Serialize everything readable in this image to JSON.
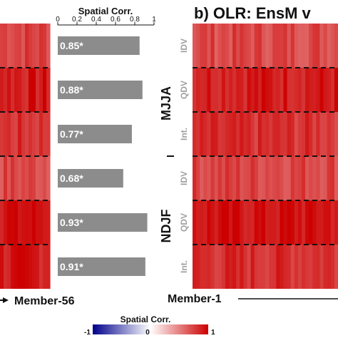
{
  "chart_data": [
    {
      "type": "heatmap",
      "title": "",
      "x_end_label": "Member-56",
      "rows": [
        "IDV",
        "QDV",
        "Int.",
        "IDV",
        "QDV",
        "Int."
      ],
      "row_values": [
        0.75,
        0.9,
        0.8,
        0.72,
        0.95,
        0.9
      ]
    },
    {
      "type": "bar",
      "title": "Spatial Corr.",
      "xlim": [
        0,
        1
      ],
      "xticks": [
        "0",
        "0.2",
        "0.4",
        "0.6",
        "0.8",
        "1"
      ],
      "categories": [
        "MJJA IDV",
        "MJJA QDV",
        "MJJA Int.",
        "NDJF IDV",
        "NDJF QDV",
        "NDJF Int."
      ],
      "values": [
        0.85,
        0.88,
        0.77,
        0.68,
        0.93,
        0.91
      ],
      "labels": [
        "0.85*",
        "0.88*",
        "0.77*",
        "0.68*",
        "0.93*",
        "0.91*"
      ],
      "bar_color": "#8c8c8c"
    },
    {
      "type": "heatmap",
      "title": "b) OLR: EnsM v",
      "groups": [
        "MJJA",
        "NDJF"
      ],
      "rows": [
        "IDV",
        "QDV",
        "Int.",
        "IDV",
        "QDV",
        "Int."
      ],
      "row_values": [
        0.72,
        0.9,
        0.8,
        0.74,
        0.93,
        0.82
      ],
      "x_start_label": "Member-1"
    }
  ],
  "colorbar": {
    "title": "Spatial Corr.",
    "min_label": "-1",
    "mid_label": "0",
    "max_label": "1",
    "colors": [
      "#00008b",
      "#ffffff",
      "#cc0000"
    ]
  }
}
